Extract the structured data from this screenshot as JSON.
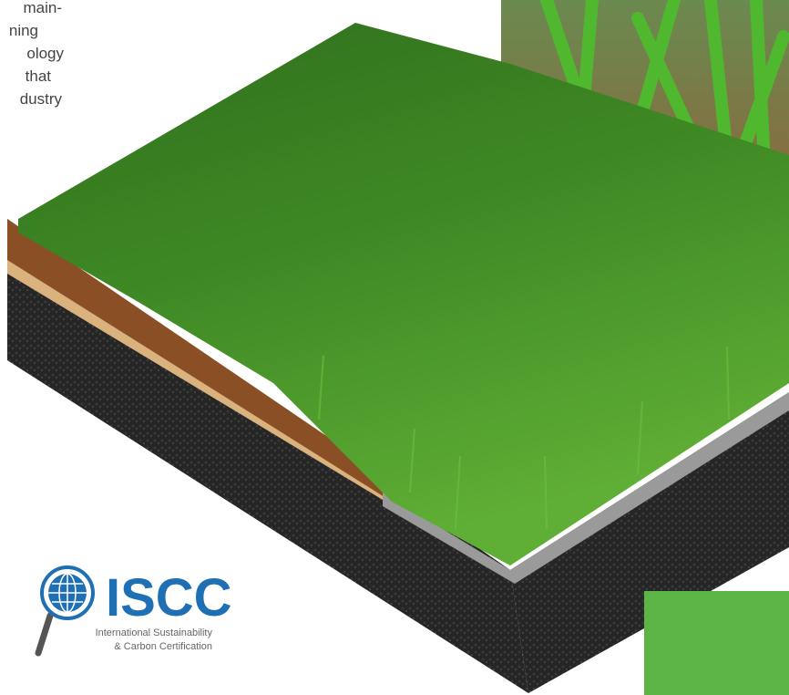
{
  "intro_text_lines": [
    "main-",
    "ning",
    "ology",
    "that",
    "dustry"
  ],
  "logo": {
    "acronym": "ISCC",
    "line1": "International Sustainability",
    "line2": "& Carbon Certification"
  }
}
